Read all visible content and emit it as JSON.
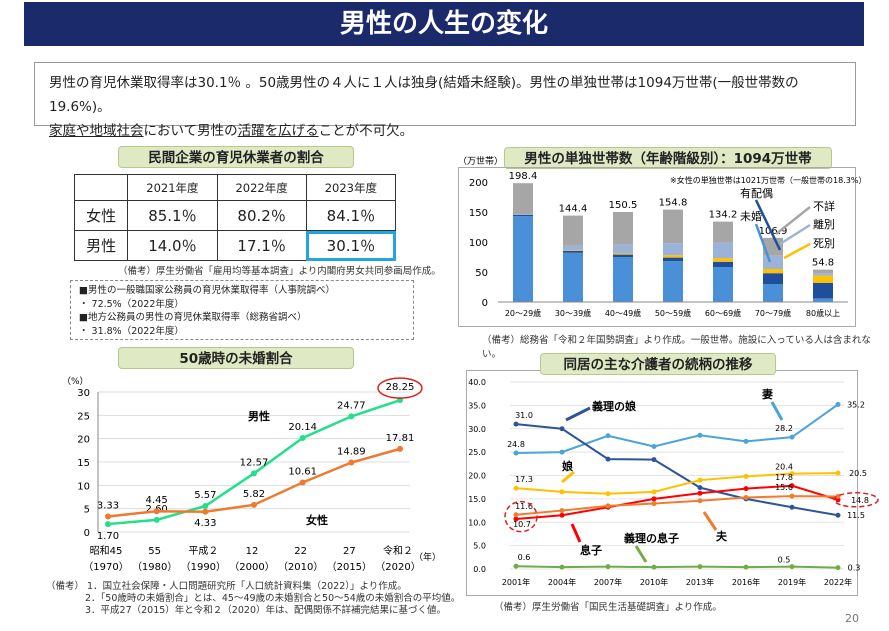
{
  "title": "男性の人生の変化",
  "summary": {
    "line1": "男性の育児休業取得率は30.1％ 。50歳男性の４人に１人は独身(結婚未経験)。男性の単独世帯は1094万世帯(一般世帯数の19.6%)。",
    "line2_underlined_1": "家庭や地域社会",
    "line2_mid": "において男性の",
    "line2_underlined_2": "活躍を広げる",
    "line2_end": "ことが不可欠。"
  },
  "childcare": {
    "heading": "民間企業の育児休業者の割合",
    "years": [
      "2021年度",
      "2022年度",
      "2023年度"
    ],
    "rows": [
      {
        "label": "女性",
        "values": [
          "85.1％",
          "80.2％",
          "84.1％"
        ]
      },
      {
        "label": "男性",
        "values": [
          "14.0％",
          "17.1％",
          "30.1％"
        ]
      }
    ],
    "note": "（備考）厚生労働省「雇用均等基本調査」より内閣府男女共同参画局作成。",
    "public": [
      "■男性の一般職国家公務員の育児休業取得率（人事院調べ）",
      "・ 72.5%（2022年度）",
      "■地方公務員の男性の育児休業取得率（総務省調べ）",
      "・ 31.8%（2022年度）"
    ]
  },
  "chart_data": [
    {
      "type": "line",
      "title": "50歳時の未婚割合",
      "ylabel": "（%）",
      "xlabel": "（年）",
      "categories": [
        "昭和45",
        "55",
        "平成２",
        "12",
        "22",
        "27",
        "令和２"
      ],
      "categories_sub": [
        "（1970）",
        "（1980）",
        "（1990）",
        "（2000）",
        "（2010）",
        "（2015）",
        "（2020）"
      ],
      "yticks": [
        "0",
        "5",
        "10",
        "15",
        "20",
        "25",
        "30"
      ],
      "ylim": [
        0,
        30
      ],
      "series": [
        {
          "name": "男性",
          "color": "#22e08a",
          "values": [
            1.7,
            2.6,
            5.57,
            12.57,
            20.14,
            24.77,
            28.25
          ],
          "labels": [
            "1.70",
            "2.60",
            "5.57",
            "12.57",
            "20.14",
            "24.77",
            "28.25"
          ]
        },
        {
          "name": "女性",
          "color": "#ee7a30",
          "values": [
            3.33,
            4.45,
            4.33,
            5.82,
            10.61,
            14.89,
            17.81
          ],
          "labels": [
            "3.33",
            "4.45",
            "4.33",
            "5.82",
            "10.61",
            "14.89",
            "17.81"
          ]
        }
      ],
      "notes": [
        "（備考） 1．国立社会保障・人口問題研究所「人口統計資料集（2022）」より作成。",
        "2．「50歳時の未婚割合」とは、45～49歳の未婚割合と50～54歳の未婚割合の平均値。",
        "3．平成27（2015）年と令和２（2020）年は、配偶関係不詳補完結果に基づく値。"
      ]
    },
    {
      "type": "bar",
      "title": "男性の単独世帯数（年齢階級別）：1094万世帯",
      "ylabel": "（万世帯）",
      "subnote": "※女性の単独世帯は1021万世帯（一般世帯の18.3%）",
      "categories": [
        "20～29歳",
        "30～39歳",
        "40～49歳",
        "50～59歳",
        "60～69歳",
        "70～79歳",
        "80歳以上"
      ],
      "totals": [
        "198.4",
        "144.4",
        "150.5",
        "154.8",
        "134.2",
        "106.9",
        "54.8"
      ],
      "yticks": [
        "0",
        "50",
        "100",
        "150",
        "200"
      ],
      "ylim": [
        0,
        200
      ],
      "series": [
        {
          "name": "未婚",
          "color": "#4a90d9",
          "values": [
            143,
            82,
            75,
            68,
            58,
            30,
            6
          ]
        },
        {
          "name": "有配偶",
          "color": "#1f4e9c",
          "values": [
            2,
            3,
            4,
            6,
            9,
            18,
            26
          ]
        },
        {
          "name": "死別",
          "color": "#ffc000",
          "values": [
            0,
            1,
            2,
            4,
            6,
            7,
            12
          ]
        },
        {
          "name": "離別",
          "color": "#9cb3d9",
          "values": [
            1,
            8,
            15,
            20,
            26,
            22,
            4
          ]
        },
        {
          "name": "不詳",
          "color": "#a6a6a6",
          "values": [
            52,
            50,
            54,
            56,
            35,
            30,
            6
          ]
        }
      ],
      "note": "（備考）総務省「令和２年国勢調査」より作成。一般世帯。施設に入っている人は含まれない。"
    },
    {
      "type": "line",
      "title": "同居の主な介護者の続柄の推移",
      "categories": [
        "2001年",
        "2004年",
        "2007年",
        "2010年",
        "2013年",
        "2016年",
        "2019年",
        "2022年"
      ],
      "yticks": [
        "0.0",
        "5.0",
        "10.0",
        "15.0",
        "20.0",
        "25.0",
        "30.0",
        "35.0",
        "40.0"
      ],
      "ylim": [
        0,
        40
      ],
      "series": [
        {
          "name": "妻",
          "color": "#4aa3d9",
          "values": [
            24.8,
            25.0,
            28.5,
            26.2,
            28.6,
            27.3,
            28.2,
            35.2
          ],
          "labels": [
            "24.8",
            "28.2",
            "35.2"
          ]
        },
        {
          "name": "義理の娘",
          "color": "#2f5597",
          "values": [
            31.0,
            30.0,
            23.5,
            23.4,
            17.4,
            15.0,
            13.2,
            11.5
          ],
          "labels": [
            "31.0",
            "11.5"
          ]
        },
        {
          "name": "娘",
          "color": "#ffc000",
          "values": [
            17.3,
            16.5,
            16.1,
            16.5,
            19.0,
            19.8,
            20.4,
            20.5
          ],
          "labels": [
            "17.3",
            "20.4",
            "20.5"
          ]
        },
        {
          "name": "息子",
          "color": "#ff0000",
          "values": [
            10.7,
            11.5,
            13.2,
            15.0,
            16.2,
            17.2,
            17.8,
            14.8
          ],
          "labels": [
            "10.7",
            "17.8",
            "14.8"
          ]
        },
        {
          "name": "夫",
          "color": "#ed7d31",
          "values": [
            11.6,
            12.5,
            13.5,
            14.0,
            14.6,
            15.3,
            15.6,
            15.5
          ],
          "labels": [
            "11.6",
            "15.6"
          ]
        },
        {
          "name": "義理の息子",
          "color": "#70ad47",
          "values": [
            0.6,
            0.4,
            0.5,
            0.4,
            0.5,
            0.4,
            0.5,
            0.3
          ],
          "labels": [
            "0.6",
            "0.5",
            "0.3"
          ]
        }
      ],
      "note": "（備考）厚生労働省「国民生活基礎調査」より作成。"
    }
  ],
  "page_number": "20"
}
